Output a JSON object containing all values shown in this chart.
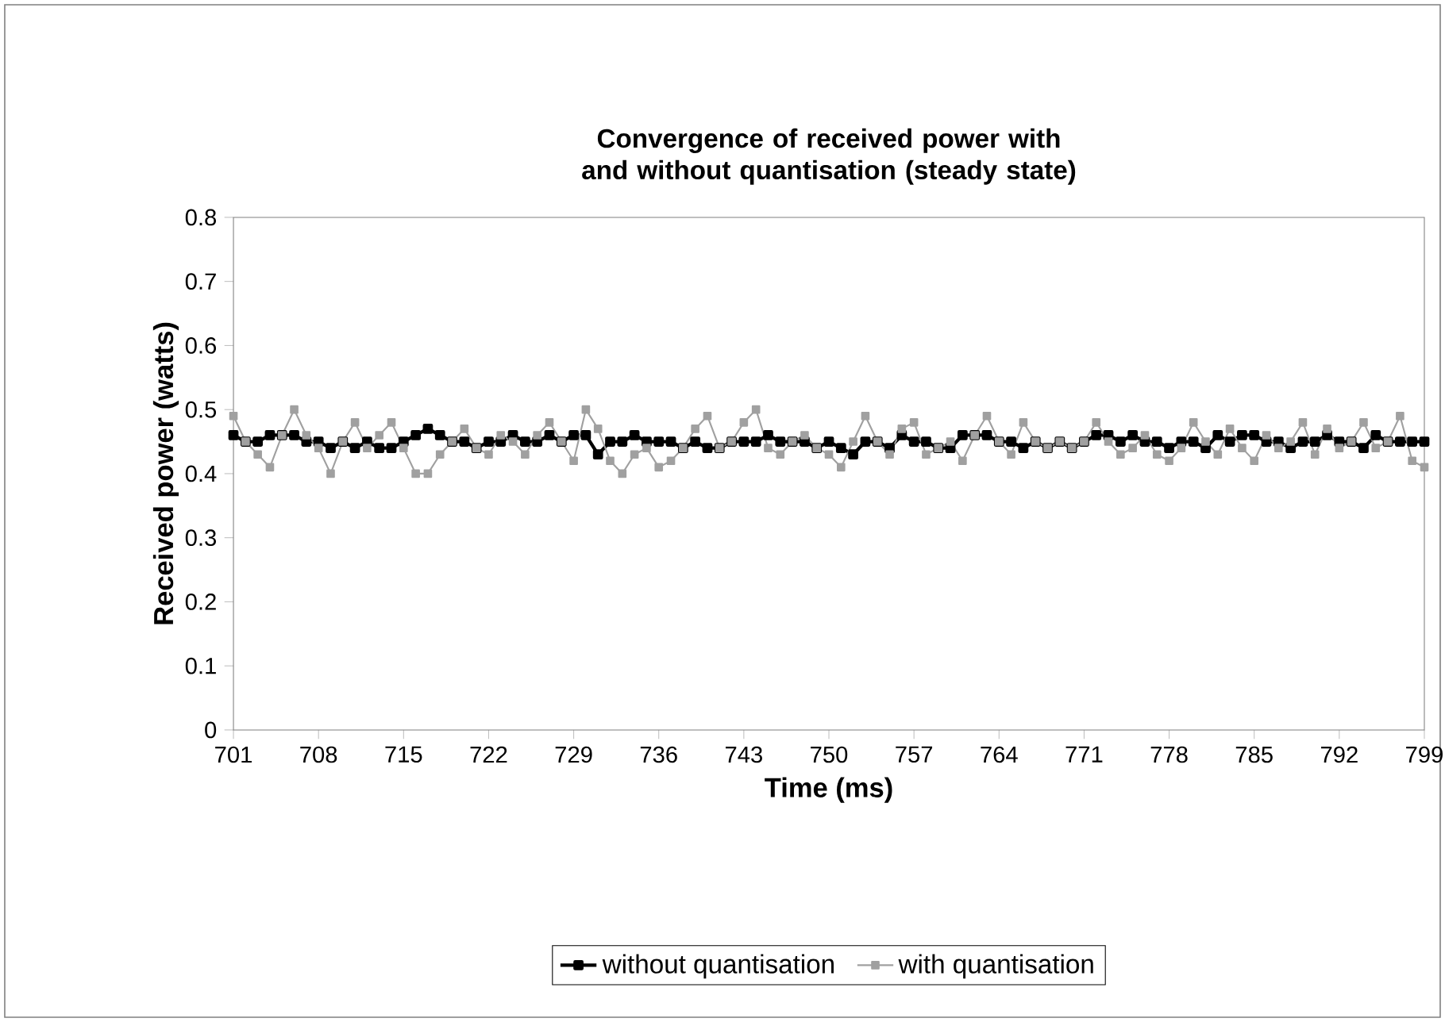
{
  "chart_data": {
    "type": "line",
    "title": "Convergence of received power with and without quantisation (steady state)",
    "xlabel": "Time (ms)",
    "ylabel": "Received power (watts)",
    "x": [
      701,
      702,
      703,
      704,
      705,
      706,
      707,
      708,
      709,
      710,
      711,
      712,
      713,
      714,
      715,
      716,
      717,
      718,
      719,
      720,
      721,
      722,
      723,
      724,
      725,
      726,
      727,
      728,
      729,
      730,
      731,
      732,
      733,
      734,
      735,
      736,
      737,
      738,
      739,
      740,
      741,
      742,
      743,
      744,
      745,
      746,
      747,
      748,
      749,
      750,
      751,
      752,
      753,
      754,
      755,
      756,
      757,
      758,
      759,
      760,
      761,
      762,
      763,
      764,
      765,
      766,
      767,
      768,
      769,
      770,
      771,
      772,
      773,
      774,
      775,
      776,
      777,
      778,
      779,
      780,
      781,
      782,
      783,
      784,
      785,
      786,
      787,
      788,
      789,
      790,
      791,
      792,
      793,
      794,
      795,
      796,
      797,
      798,
      799
    ],
    "series": [
      {
        "name": "without quantisation",
        "color": "#000000",
        "values": [
          0.46,
          0.45,
          0.45,
          0.46,
          0.46,
          0.46,
          0.45,
          0.45,
          0.44,
          0.45,
          0.44,
          0.45,
          0.44,
          0.44,
          0.45,
          0.46,
          0.47,
          0.46,
          0.45,
          0.45,
          0.44,
          0.45,
          0.45,
          0.46,
          0.45,
          0.45,
          0.46,
          0.45,
          0.46,
          0.46,
          0.43,
          0.45,
          0.45,
          0.46,
          0.45,
          0.45,
          0.45,
          0.44,
          0.45,
          0.44,
          0.44,
          0.45,
          0.45,
          0.45,
          0.46,
          0.45,
          0.45,
          0.45,
          0.44,
          0.45,
          0.44,
          0.43,
          0.45,
          0.45,
          0.44,
          0.46,
          0.45,
          0.45,
          0.44,
          0.44,
          0.46,
          0.46,
          0.46,
          0.45,
          0.45,
          0.44,
          0.45,
          0.44,
          0.45,
          0.44,
          0.45,
          0.46,
          0.46,
          0.45,
          0.46,
          0.45,
          0.45,
          0.44,
          0.45,
          0.45,
          0.44,
          0.46,
          0.45,
          0.46,
          0.46,
          0.45,
          0.45,
          0.44,
          0.45,
          0.45,
          0.46,
          0.45,
          0.45,
          0.44,
          0.46,
          0.45,
          0.45,
          0.45,
          0.45
        ]
      },
      {
        "name": "with quantisation",
        "color": "#a0a0a0",
        "values": [
          0.49,
          0.45,
          0.43,
          0.41,
          0.46,
          0.5,
          0.46,
          0.44,
          0.4,
          0.45,
          0.48,
          0.44,
          0.46,
          0.48,
          0.44,
          0.4,
          0.4,
          0.43,
          0.45,
          0.47,
          0.44,
          0.43,
          0.46,
          0.45,
          0.43,
          0.46,
          0.48,
          0.45,
          0.42,
          0.5,
          0.47,
          0.42,
          0.4,
          0.43,
          0.44,
          0.41,
          0.42,
          0.44,
          0.47,
          0.49,
          0.44,
          0.45,
          0.48,
          0.5,
          0.44,
          0.43,
          0.45,
          0.46,
          0.44,
          0.43,
          0.41,
          0.45,
          0.49,
          0.45,
          0.43,
          0.47,
          0.48,
          0.43,
          0.44,
          0.45,
          0.42,
          0.46,
          0.49,
          0.45,
          0.43,
          0.48,
          0.45,
          0.44,
          0.45,
          0.44,
          0.45,
          0.48,
          0.45,
          0.43,
          0.44,
          0.46,
          0.43,
          0.42,
          0.44,
          0.48,
          0.45,
          0.43,
          0.47,
          0.44,
          0.42,
          0.46,
          0.44,
          0.45,
          0.48,
          0.43,
          0.47,
          0.44,
          0.45,
          0.48,
          0.44,
          0.45,
          0.49,
          0.42,
          0.41
        ]
      }
    ],
    "xlim": [
      701,
      799
    ],
    "xticks": [
      701,
      708,
      715,
      722,
      729,
      736,
      743,
      750,
      757,
      764,
      771,
      778,
      785,
      792,
      799
    ],
    "ylim": [
      0,
      0.8
    ],
    "yticks": [
      0,
      0.1,
      0.2,
      0.3,
      0.4,
      0.5,
      0.6,
      0.7,
      0.8
    ],
    "marker": "square",
    "line_style": "solid",
    "legend": "bottom"
  }
}
